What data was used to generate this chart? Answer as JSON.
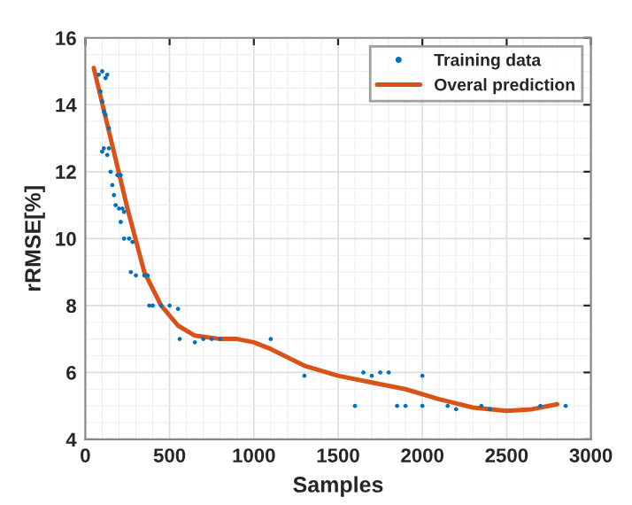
{
  "chart_data": {
    "type": "scatter",
    "xlabel": "Samples",
    "ylabel": "rRMSE[%]",
    "xlim": [
      0,
      3000
    ],
    "xticks": [
      0,
      500,
      1000,
      1500,
      2000,
      2500,
      3000
    ],
    "ylim": [
      4,
      16
    ],
    "yticks": [
      4,
      6,
      8,
      10,
      12,
      14,
      16
    ],
    "grid": true,
    "legend": "top right",
    "series": [
      {
        "name": "Training data",
        "marker": "circle",
        "color": "#0072bd",
        "x": [
          80,
          100,
          120,
          130,
          90,
          100,
          110,
          120,
          140,
          100,
          110,
          130,
          140,
          150,
          160,
          170,
          190,
          210,
          180,
          200,
          220,
          230,
          210,
          230,
          260,
          280,
          270,
          300,
          350,
          370,
          380,
          400,
          450,
          500,
          550,
          560,
          650,
          700,
          750,
          800,
          1100,
          1300,
          1600,
          1650,
          1700,
          1750,
          1800,
          1850,
          1900,
          2000,
          2000,
          2150,
          2200,
          2350,
          2400,
          2700,
          2850
        ],
        "values": [
          14.9,
          15.0,
          14.8,
          14.9,
          14.4,
          14.1,
          13.8,
          13.7,
          13.3,
          12.6,
          12.7,
          12.5,
          12.7,
          12.0,
          11.6,
          11.3,
          11.9,
          11.9,
          11.0,
          10.9,
          10.9,
          10.8,
          10.5,
          10.0,
          10.0,
          9.9,
          9.0,
          8.9,
          8.9,
          8.9,
          8.0,
          8.0,
          8.0,
          8.0,
          7.9,
          7.0,
          6.9,
          7.0,
          7.0,
          7.0,
          7.0,
          5.9,
          5.0,
          6.0,
          5.9,
          6.0,
          6.0,
          5.0,
          5.0,
          5.0,
          5.9,
          5.0,
          4.9,
          5.0,
          4.9,
          5.0,
          5.0
        ]
      },
      {
        "name": "Overal prediction",
        "type": "line",
        "marker": "none",
        "line_style": "solid",
        "color": "#d95319",
        "x": [
          50,
          150,
          250,
          350,
          450,
          550,
          650,
          800,
          900,
          1000,
          1100,
          1300,
          1500,
          1700,
          1900,
          2100,
          2300,
          2500,
          2650,
          2800
        ],
        "values": [
          15.1,
          13.0,
          10.9,
          9.0,
          8.0,
          7.4,
          7.1,
          7.0,
          7.0,
          6.9,
          6.7,
          6.2,
          5.9,
          5.7,
          5.5,
          5.2,
          4.95,
          4.85,
          4.9,
          5.05
        ]
      }
    ]
  }
}
